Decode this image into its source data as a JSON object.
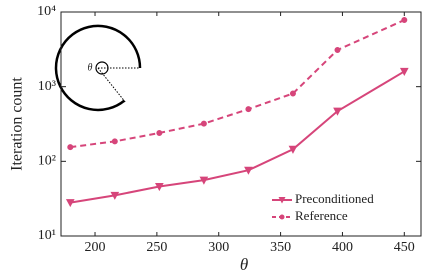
{
  "chart_data": {
    "type": "line",
    "x_label": "θ",
    "y_label": "Iteration count",
    "inset_label": "θ",
    "x": [
      180,
      216,
      252,
      288,
      324,
      360,
      396,
      450
    ],
    "series": [
      {
        "name": "Preconditioned",
        "color": "#d6457a",
        "linestyle": "solid",
        "marker": "triangle-down",
        "values": [
          28,
          35,
          46,
          56,
          76,
          145,
          470,
          1600
        ]
      },
      {
        "name": "Reference",
        "color": "#d6457a",
        "linestyle": "dashed",
        "marker": "circle",
        "values": [
          155,
          185,
          240,
          320,
          500,
          810,
          3100,
          7800
        ]
      }
    ],
    "xlim": [
      172.5,
      463.5
    ],
    "xticks": [
      200,
      250,
      300,
      350,
      400,
      450
    ],
    "ylim": [
      10,
      10000
    ],
    "log_y": true,
    "yticks": [
      {
        "value": 10,
        "label": "10¹"
      },
      {
        "value": 100,
        "label": "10²"
      },
      {
        "value": 1000,
        "label": "10³"
      },
      {
        "value": 10000,
        "label": "10⁴"
      }
    ],
    "legend": "lower right"
  }
}
